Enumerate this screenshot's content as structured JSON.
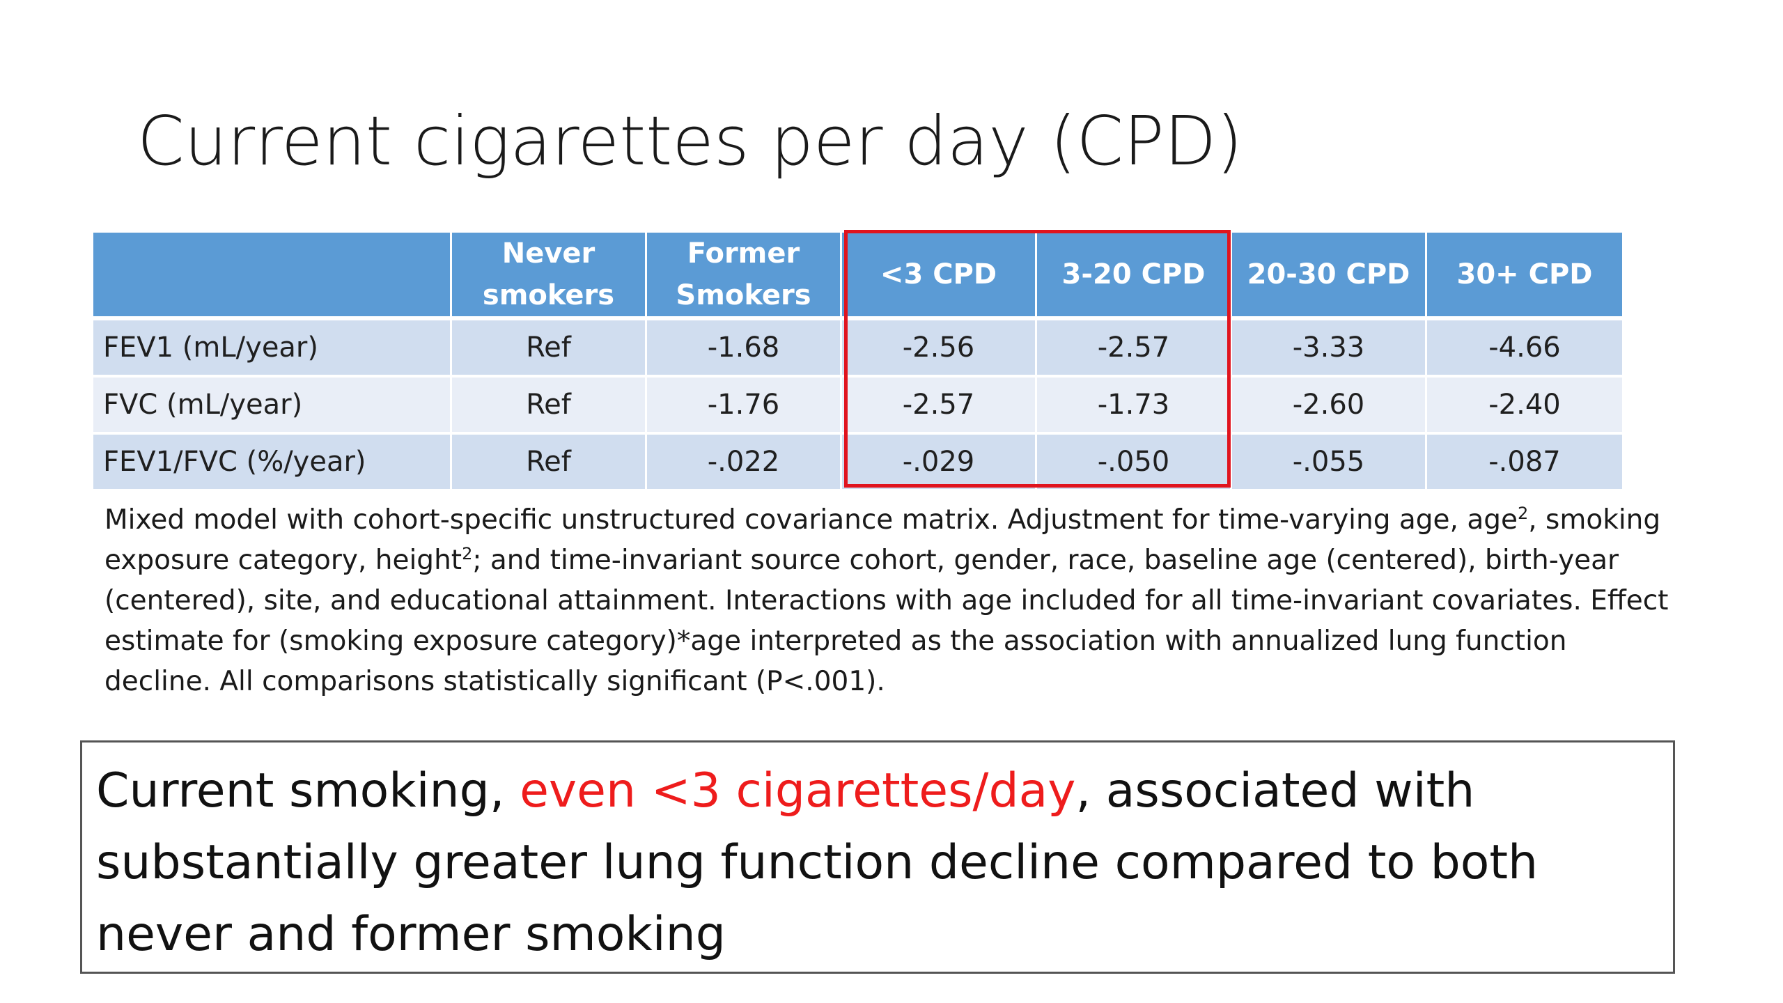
{
  "slide": {
    "title": "Current cigarettes per day (CPD)"
  },
  "table": {
    "headers": [
      "",
      "Never smokers",
      "Former Smokers",
      "<3 CPD",
      "3-20 CPD",
      "20-30 CPD",
      "30+ CPD"
    ],
    "rows": [
      {
        "label": "FEV1 (mL/year)",
        "values": [
          "Ref",
          "-1.68",
          "-2.56",
          "-2.57",
          "-3.33",
          "-4.66"
        ]
      },
      {
        "label": "FVC (mL/year)",
        "values": [
          "Ref",
          "-1.76",
          "-2.57",
          "-1.73",
          "-2.60",
          "-2.40"
        ]
      },
      {
        "label": "FEV1/FVC (%/year)",
        "values": [
          "Ref",
          "-.022",
          "-.029",
          "-.050",
          "-.055",
          "-.087"
        ]
      }
    ],
    "highlight_color": "#e0141e",
    "header_color": "#5b9bd5"
  },
  "footnote": {
    "part1": "Mixed model with cohort-specific unstructured covariance matrix. Adjustment for time-varying age, age",
    "sup1": "2",
    "part2": ", smoking exposure category, height",
    "sup2": "2",
    "part3": "; and time-invariant source cohort, gender, race, baseline age (centered), birth-year (centered), site, and educational attainment. Interactions with age included for all time-invariant covariates. Effect estimate for (smoking exposure category)*age interpreted as the association with annualized lung function decline. All comparisons statistically significant (P<.001)."
  },
  "conclusion": {
    "before": "Current smoking, ",
    "highlight": "even <3 cigarettes/day",
    "after": ", associated with substantially greater lung function decline compared to both never and former smoking",
    "highlight_color": "#ee1c1c"
  }
}
